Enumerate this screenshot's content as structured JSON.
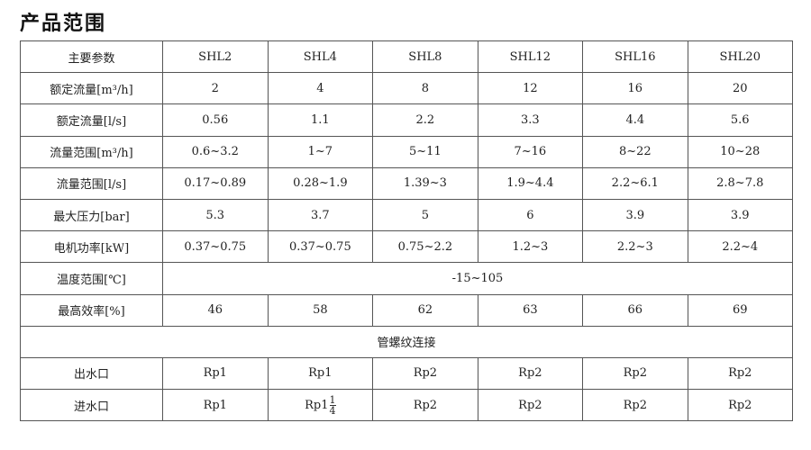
{
  "title": "产品范围",
  "header": {
    "label": "主要参数",
    "models": [
      "SHL2",
      "SHL4",
      "SHL8",
      "SHL12",
      "SHL16",
      "SHL20"
    ]
  },
  "rows": [
    {
      "label": "额定流量[m³/h]",
      "values": [
        "2",
        "4",
        "8",
        "12",
        "16",
        "20"
      ]
    },
    {
      "label": "额定流量[l/s]",
      "values": [
        "0.56",
        "1.1",
        "2.2",
        "3.3",
        "4.4",
        "5.6"
      ]
    },
    {
      "label": "流量范围[m³/h]",
      "values": [
        "0.6~3.2",
        "1~7",
        "5~11",
        "7~16",
        "8~22",
        "10~28"
      ]
    },
    {
      "label": "流量范围[l/s]",
      "values": [
        "0.17~0.89",
        "0.28~1.9",
        "1.39~3",
        "1.9~4.4",
        "2.2~6.1",
        "2.8~7.8"
      ]
    },
    {
      "label": "最大压力[bar]",
      "values": [
        "5.3",
        "3.7",
        "5",
        "6",
        "3.9",
        "3.9"
      ]
    },
    {
      "label": "电机功率[kW]",
      "values": [
        "0.37~0.75",
        "0.37~0.75",
        "0.75~2.2",
        "1.2~3",
        "2.2~3",
        "2.2~4"
      ]
    }
  ],
  "temperature": {
    "label": "温度范围[℃]",
    "value": "-15~105"
  },
  "efficiency": {
    "label": "最高效率[%]",
    "values": [
      "46",
      "58",
      "62",
      "63",
      "66",
      "69"
    ]
  },
  "connection": {
    "label": "管螺纹连接"
  },
  "outlet": {
    "label": "出水口",
    "values": [
      "Rp1",
      "Rp1",
      "Rp2",
      "Rp2",
      "Rp2",
      "Rp2"
    ]
  },
  "inlet": {
    "label": "进水口",
    "values": [
      "Rp1",
      "Rp1",
      "Rp2",
      "Rp2",
      "Rp2",
      "Rp2"
    ],
    "fraction": {
      "num": "1",
      "den": "4"
    }
  }
}
